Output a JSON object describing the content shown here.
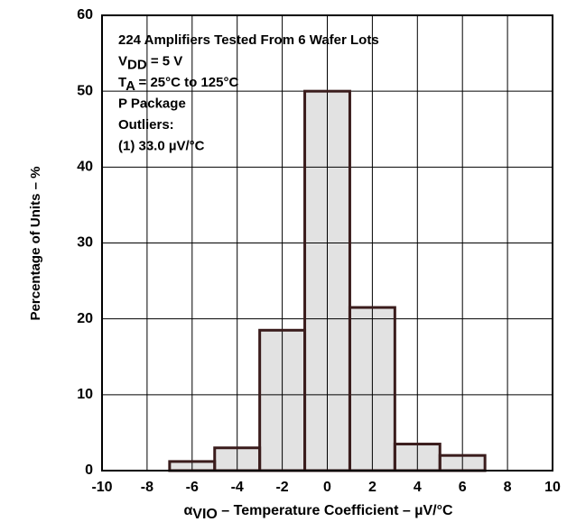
{
  "chart_data": {
    "type": "histogram",
    "bins": [
      -7,
      -5,
      -3,
      -1,
      1,
      3,
      5,
      7
    ],
    "values": [
      1.2,
      3,
      18.5,
      50,
      21.5,
      3.5,
      2
    ],
    "color": "#e2e2e2",
    "edge_color": "#3a1c1c",
    "xlim": [
      -10,
      10
    ],
    "xticks": [
      -10,
      -8,
      -6,
      -4,
      -2,
      0,
      2,
      4,
      6,
      8,
      10
    ],
    "ylim": [
      0,
      60
    ],
    "yticks": [
      0,
      10,
      20,
      30,
      40,
      50,
      60
    ],
    "grid": true,
    "y_label": "Percentage of Units – %",
    "x_label": [
      "α",
      "VIO",
      " – Temperature Coefficient – µV/°C"
    ],
    "annotations": [
      [
        "224 Amplifiers Tested From 6 Wafer Lots"
      ],
      [
        "V",
        "DD",
        " = 5 V"
      ],
      [
        "T",
        "A",
        " = 25°C to 125°C"
      ],
      [
        "P Package"
      ],
      [
        "Outliers:"
      ],
      [
        "(1) 33.0 µV/°C"
      ]
    ]
  }
}
